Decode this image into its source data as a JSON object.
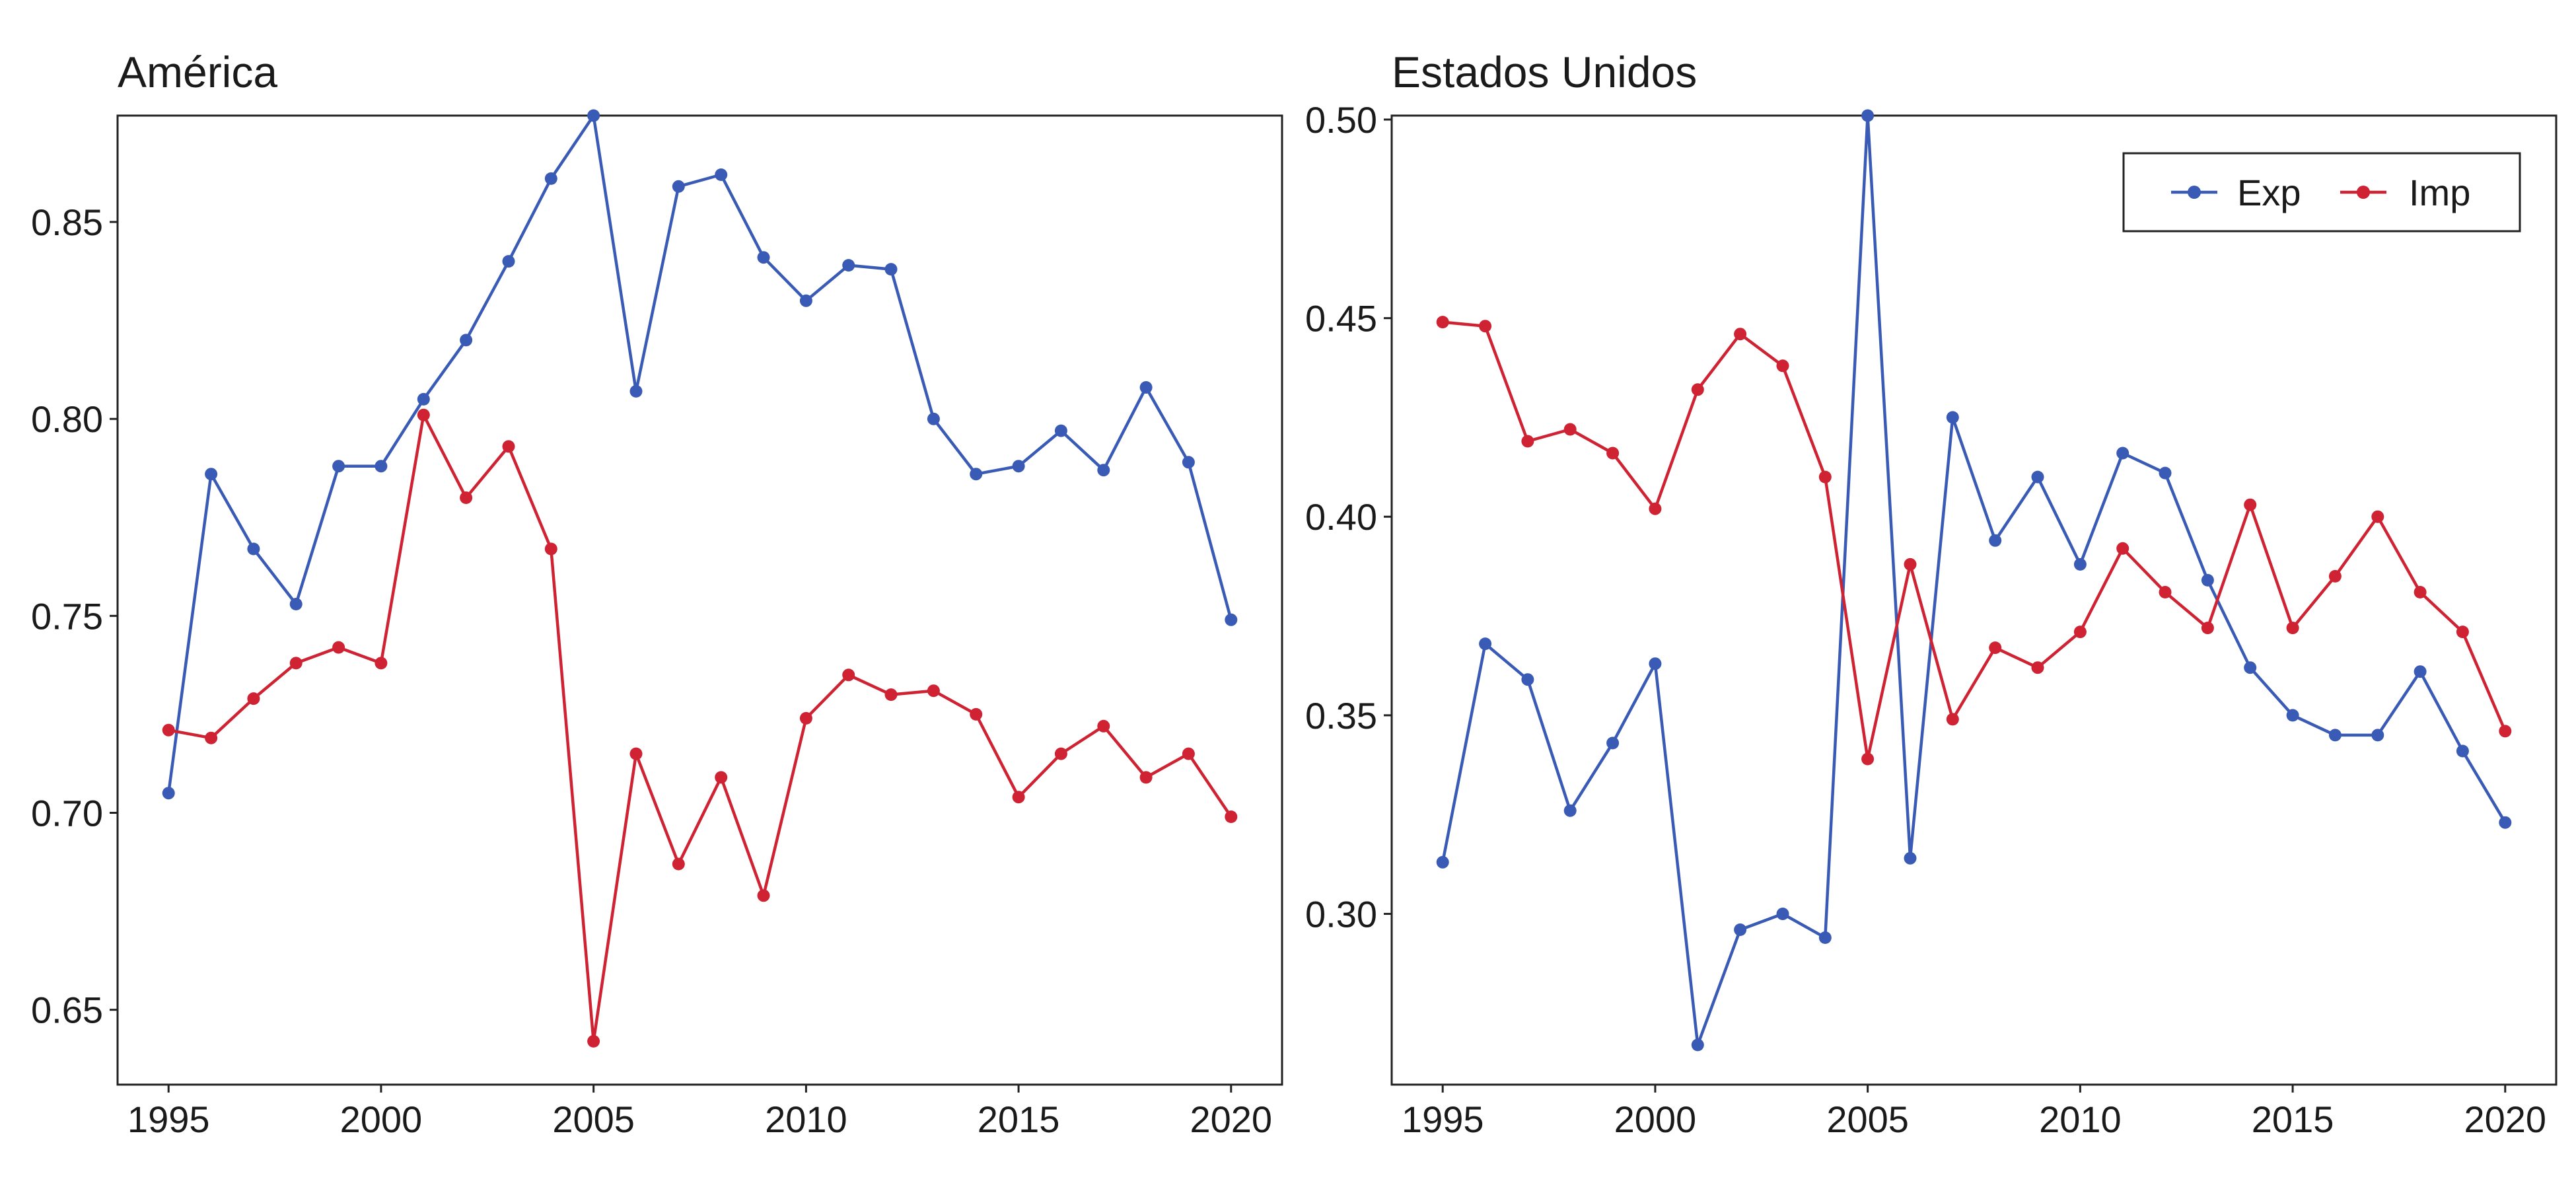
{
  "colors": {
    "exp": "#3a5bb5",
    "imp": "#cf2232"
  },
  "legend": {
    "entries": [
      {
        "key": "exp",
        "label": "Exp"
      },
      {
        "key": "imp",
        "label": "Imp"
      }
    ],
    "position": "top-right"
  },
  "chart_data": [
    {
      "type": "line",
      "title": "América",
      "x": [
        1995,
        1996,
        1997,
        1998,
        1999,
        2000,
        2001,
        2002,
        2003,
        2004,
        2005,
        2006,
        2007,
        2008,
        2009,
        2010,
        2011,
        2012,
        2013,
        2014,
        2015,
        2016,
        2017,
        2018,
        2019,
        2020
      ],
      "series": [
        {
          "name": "Exp",
          "key": "exp",
          "values": [
            0.705,
            0.786,
            0.767,
            0.753,
            0.788,
            0.788,
            0.805,
            0.82,
            0.84,
            0.861,
            0.877,
            0.807,
            0.859,
            0.862,
            0.841,
            0.83,
            0.839,
            0.838,
            0.8,
            0.786,
            0.788,
            0.797,
            0.787,
            0.808,
            0.789,
            0.749
          ]
        },
        {
          "name": "Imp",
          "key": "imp",
          "values": [
            0.721,
            0.719,
            0.729,
            0.738,
            0.742,
            0.738,
            0.801,
            0.78,
            0.793,
            0.767,
            0.642,
            0.715,
            0.687,
            0.709,
            0.679,
            0.724,
            0.735,
            0.73,
            0.731,
            0.725,
            0.704,
            0.715,
            0.722,
            0.709,
            0.715,
            0.699
          ]
        }
      ],
      "xlim": [
        1993.8,
        2021.2
      ],
      "ylim": [
        0.631,
        0.877
      ],
      "xticks": [
        1995,
        2000,
        2005,
        2010,
        2015,
        2020
      ],
      "yticks": [
        0.65,
        0.7,
        0.75,
        0.8,
        0.85
      ],
      "ytick_labels": [
        "0.65",
        "0.70",
        "0.75",
        "0.80",
        "0.85"
      ],
      "grid": false
    },
    {
      "type": "line",
      "title": "Estados Unidos",
      "x": [
        1995,
        1996,
        1997,
        1998,
        1999,
        2000,
        2001,
        2002,
        2003,
        2004,
        2005,
        2006,
        2007,
        2008,
        2009,
        2010,
        2011,
        2012,
        2013,
        2014,
        2015,
        2016,
        2017,
        2018,
        2019,
        2020
      ],
      "series": [
        {
          "name": "Exp",
          "key": "exp",
          "values": [
            0.313,
            0.368,
            0.359,
            0.326,
            0.343,
            0.363,
            0.267,
            0.296,
            0.3,
            0.294,
            0.501,
            0.314,
            0.425,
            0.394,
            0.41,
            0.388,
            0.416,
            0.411,
            0.384,
            0.362,
            0.35,
            0.345,
            0.345,
            0.361,
            0.341,
            0.323
          ]
        },
        {
          "name": "Imp",
          "key": "imp",
          "values": [
            0.449,
            0.448,
            0.419,
            0.422,
            0.416,
            0.402,
            0.432,
            0.446,
            0.438,
            0.41,
            0.339,
            0.388,
            0.349,
            0.367,
            0.362,
            0.371,
            0.392,
            0.381,
            0.372,
            0.403,
            0.372,
            0.385,
            0.4,
            0.381,
            0.371,
            0.346
          ]
        }
      ],
      "xlim": [
        1993.8,
        2021.2
      ],
      "ylim": [
        0.257,
        0.501
      ],
      "xticks": [
        1995,
        2000,
        2005,
        2010,
        2015,
        2020
      ],
      "yticks": [
        0.3,
        0.35,
        0.4,
        0.45,
        0.5
      ],
      "ytick_labels": [
        "0.30",
        "0.35",
        "0.40",
        "0.45",
        "0.50"
      ],
      "grid": false
    }
  ]
}
